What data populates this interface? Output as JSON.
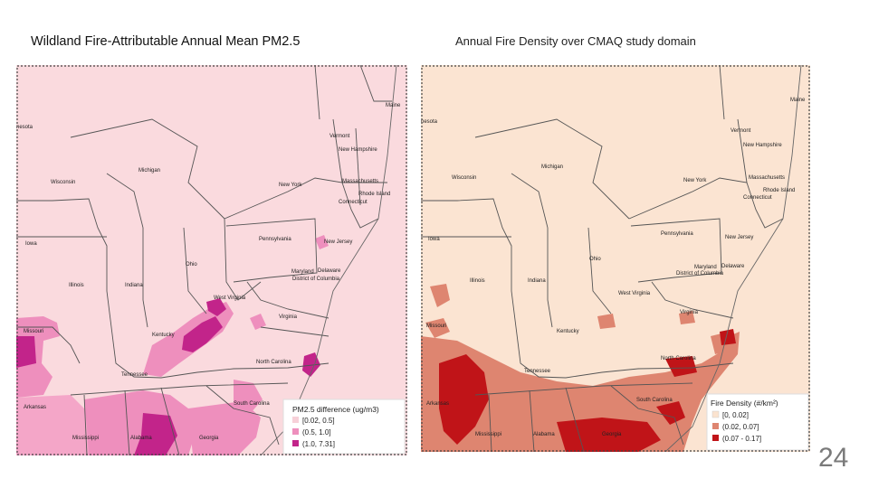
{
  "left_panel": {
    "title": "Wildland Fire-Attributable Annual Mean PM2.5",
    "labels": {
      "minnesota": "nesota",
      "maine": "Maine",
      "vermont": "Vermont",
      "new_hampshire": "New Hampshire",
      "michigan": "Michigan",
      "wisconsin": "Wisconsin",
      "new_york": "New York",
      "massachusetts": "Massachusetts",
      "rhode_island": "Rhode Island",
      "connecticut": "Connecticut",
      "iowa": "Iowa",
      "pennsylvania": "Pennsylvania",
      "new_jersey": "New Jersey",
      "ohio": "Ohio",
      "maryland": "Maryland",
      "delaware": "Delaware",
      "dc": "District of Columbia",
      "illinois": "Illinois",
      "indiana": "Indiana",
      "west_virginia": "West Virginia",
      "virginia": "Virginia",
      "missouri": "Missouri",
      "kentucky": "Kentucky",
      "north_carolina": "North Carolina",
      "tennessee": "Tennessee",
      "arkansas": "Arkansas",
      "south_carolina": "South Carolina",
      "mississippi": "Mississippi",
      "alabama": "Alabama",
      "georgia": "Georgia"
    },
    "legend": {
      "title": "PM2.5 difference (ug/m3)",
      "items": [
        {
          "label": "[0.02, 0.5]",
          "color": "#f7d0d8"
        },
        {
          "label": "(0.5, 1.0]",
          "color": "#ee8fbd"
        },
        {
          "label": "(1.0, 7.31]",
          "color": "#c2248a"
        }
      ]
    },
    "background_color": "#fadade"
  },
  "right_panel": {
    "title": "Annual Fire Density over CMAQ study domain",
    "labels": {
      "maine": "Maine",
      "minnesota": "nesota",
      "vermont": "Vermont",
      "new_hampshire": "New Hampshire",
      "michigan": "Michigan",
      "wisconsin": "Wisconsin",
      "massachusetts": "Massachusetts",
      "new_york": "New York",
      "rhode_island": "Rhode Island",
      "connecticut": "Connecticut",
      "iowa": "Iowa",
      "pennsylvania": "Pennsylvania",
      "new_jersey": "New Jersey",
      "ohio": "Ohio",
      "maryland": "Maryland",
      "delaware": "Delaware",
      "dc": "District of Columbia",
      "illinois": "Illinois",
      "indiana": "Indiana",
      "west_virginia": "West Virginia",
      "virginia": "Virginia",
      "missouri": "Missouri",
      "kentucky": "Kentucky",
      "north_carolina": "North Carolina",
      "tennessee": "Tennessee",
      "south_carolina": "South Carolina",
      "arkansas": "Arkansas",
      "mississippi": "Mississippi",
      "alabama": "Alabama",
      "georgia": "Georgia"
    },
    "legend": {
      "title": "Fire Density (#/km²)",
      "items": [
        {
          "label": "[0, 0.02]",
          "color": "#fbe3cf"
        },
        {
          "label": "(0.02, 0.07]",
          "color": "#de8570"
        },
        {
          "label": "(0.07 - 0.17]",
          "color": "#c01418"
        }
      ]
    },
    "background_color": "#fbe4d2"
  },
  "page_number": "24"
}
